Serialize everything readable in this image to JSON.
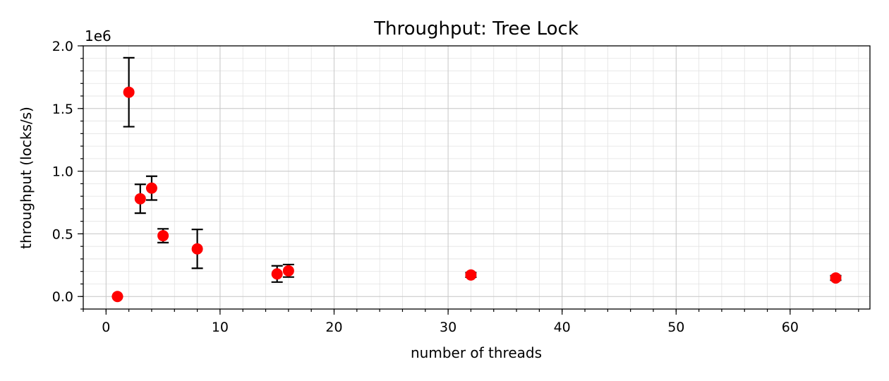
{
  "chart_data": {
    "type": "scatter",
    "title": "Throughput: Tree Lock",
    "xlabel": "number of threads",
    "ylabel": "throughput (locks/s)",
    "y_offset_label": "1e6",
    "xlim": [
      -2,
      67
    ],
    "ylim": [
      -0.1,
      2.0
    ],
    "x_ticks": [
      0,
      10,
      20,
      30,
      40,
      50,
      60
    ],
    "x_tick_labels": [
      "0",
      "10",
      "20",
      "30",
      "40",
      "50",
      "60"
    ],
    "y_ticks": [
      0.0,
      0.5,
      1.0,
      1.5,
      2.0
    ],
    "y_tick_labels": [
      "0.0",
      "0.5",
      "1.0",
      "1.5",
      "2.0"
    ],
    "x_minor_step": 2,
    "y_minor_step": 0.1,
    "grid": true,
    "marker_color": "#ff0000",
    "errorbar_color": "#000000",
    "series": [
      {
        "name": "tree lock",
        "x": [
          1,
          2,
          3,
          4,
          5,
          8,
          15,
          16,
          32,
          64
        ],
        "y": [
          0.0,
          1.63,
          0.78,
          0.865,
          0.485,
          0.38,
          0.18,
          0.205,
          0.172,
          0.148
        ],
        "yerr": [
          0.0,
          0.275,
          0.115,
          0.095,
          0.055,
          0.155,
          0.065,
          0.05,
          0.018,
          0.018
        ]
      }
    ]
  }
}
